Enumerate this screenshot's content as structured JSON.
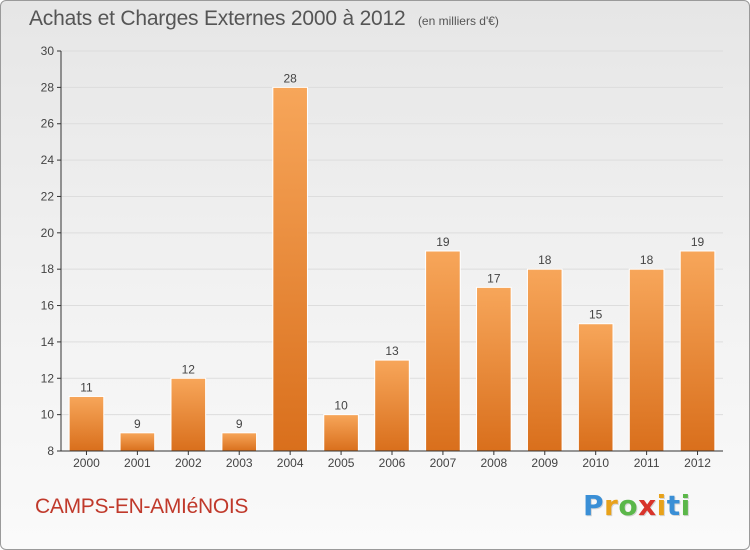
{
  "title": "Achats et Charges Externes 2000 à 2012",
  "unit_note": "(en milliers d'€)",
  "commune": "CAMPS-EN-AMIéNOIS",
  "brand": {
    "letters": [
      "P",
      "r",
      "o",
      "x",
      "i",
      "t",
      "i"
    ],
    "colors": [
      "#3a8fd6",
      "#e8a21a",
      "#5bb74a",
      "#d8342b",
      "#e8a21a",
      "#3a8fd6",
      "#5bb74a"
    ]
  },
  "colors": {
    "bar_top": "#f7a65a",
    "bar_bottom": "#d96f1c",
    "grid": "#dddddd",
    "axis": "#333333",
    "text": "#444444"
  },
  "chart_data": {
    "type": "bar",
    "categories": [
      "2000",
      "2001",
      "2002",
      "2003",
      "2004",
      "2005",
      "2006",
      "2007",
      "2008",
      "2009",
      "2010",
      "2011",
      "2012"
    ],
    "values": [
      11,
      9,
      12,
      9,
      28,
      10,
      13,
      19,
      17,
      18,
      15,
      18,
      19
    ],
    "data_labels": [
      "11",
      "9",
      "12",
      "9",
      "28",
      "10",
      "13",
      "19",
      "17",
      "18",
      "15",
      "18",
      "19"
    ],
    "y_ticks": [
      "8",
      "10",
      "12",
      "14",
      "16",
      "18",
      "20",
      "22",
      "24",
      "26",
      "28",
      "30"
    ],
    "ylim": [
      8,
      30
    ],
    "grid": true,
    "legend": "none"
  }
}
